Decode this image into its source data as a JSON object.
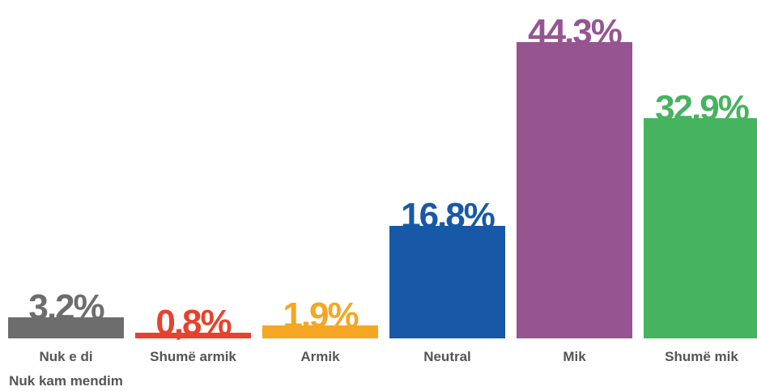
{
  "chart_data": {
    "type": "bar",
    "categories": [
      "Nuk e di\nNuk kam mendim",
      "Shumë armik",
      "Armik",
      "Neutral",
      "Mik",
      "Shumë mik"
    ],
    "values": [
      3.2,
      0.8,
      1.9,
      16.8,
      44.3,
      32.9
    ],
    "value_labels": [
      "3,2%",
      "0,8%",
      "1,9%",
      "16,8%",
      "44,3%",
      "32,9%"
    ],
    "colors": [
      "#6d6d6d",
      "#e5432e",
      "#f5a623",
      "#1759a6",
      "#955591",
      "#46b35f"
    ]
  }
}
